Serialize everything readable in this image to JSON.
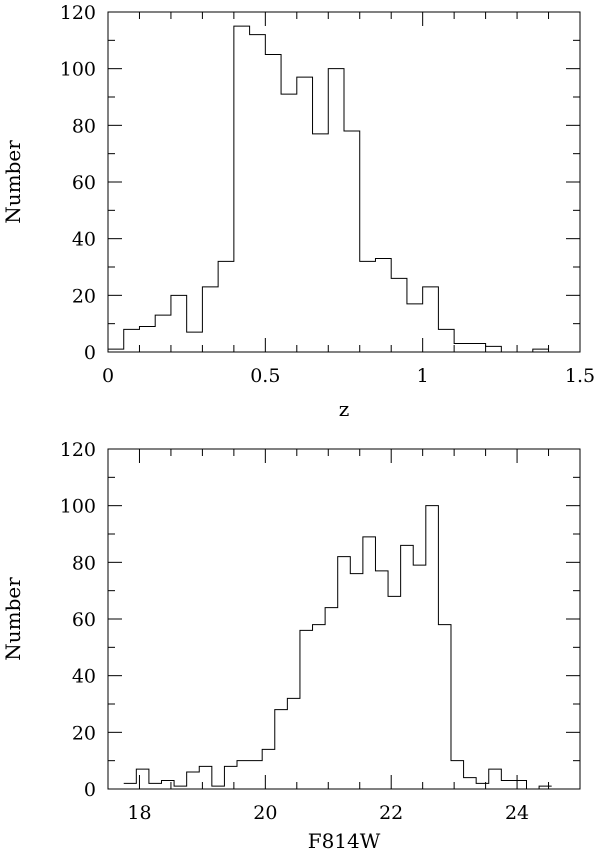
{
  "chart_data": [
    {
      "type": "bar",
      "title": "",
      "xlabel": "z",
      "ylabel": "Number",
      "xlim": [
        0,
        1.5
      ],
      "ylim": [
        0,
        120
      ],
      "xticks": [
        "0",
        "0.5",
        "1",
        "1.5"
      ],
      "yticks": [
        "0",
        "20",
        "40",
        "60",
        "80",
        "100",
        "120"
      ],
      "bin_edges": [
        0,
        0.05,
        0.1,
        0.15,
        0.2,
        0.25,
        0.3,
        0.35,
        0.4,
        0.45,
        0.5,
        0.55,
        0.6,
        0.65,
        0.7,
        0.75,
        0.8,
        0.85,
        0.9,
        0.95,
        1.0,
        1.05,
        1.1,
        1.15,
        1.2,
        1.25,
        1.3,
        1.35,
        1.4
      ],
      "values": [
        1,
        8,
        9,
        13,
        20,
        7,
        23,
        32,
        115,
        112,
        105,
        91,
        97,
        77,
        100,
        78,
        32,
        33,
        26,
        17,
        23,
        8,
        3,
        3,
        2,
        0,
        0,
        1
      ],
      "grid": false,
      "style": "step histogram"
    },
    {
      "type": "bar",
      "title": "",
      "xlabel": "F814W",
      "ylabel": "Number",
      "xlim": [
        17.5,
        25
      ],
      "ylim": [
        0,
        120
      ],
      "xticks": [
        "18",
        "20",
        "22",
        "24"
      ],
      "yticks": [
        "0",
        "20",
        "40",
        "60",
        "80",
        "100",
        "120"
      ],
      "bin_edges": [
        17.75,
        17.95,
        18.15,
        18.35,
        18.55,
        18.75,
        18.95,
        19.15,
        19.35,
        19.55,
        19.75,
        19.95,
        20.15,
        20.35,
        20.55,
        20.75,
        20.95,
        21.15,
        21.35,
        21.55,
        21.75,
        21.95,
        22.15,
        22.35,
        22.55,
        22.75,
        22.95,
        23.15,
        23.35,
        23.55,
        23.75,
        23.95,
        24.15,
        24.35,
        24.55
      ],
      "values": [
        2,
        7,
        2,
        3,
        1,
        6,
        8,
        1,
        8,
        10,
        10,
        14,
        28,
        32,
        56,
        58,
        64,
        82,
        76,
        89,
        77,
        68,
        86,
        79,
        100,
        58,
        10,
        4,
        2,
        7,
        3,
        3,
        0,
        1
      ],
      "grid": false,
      "style": "step histogram"
    }
  ]
}
